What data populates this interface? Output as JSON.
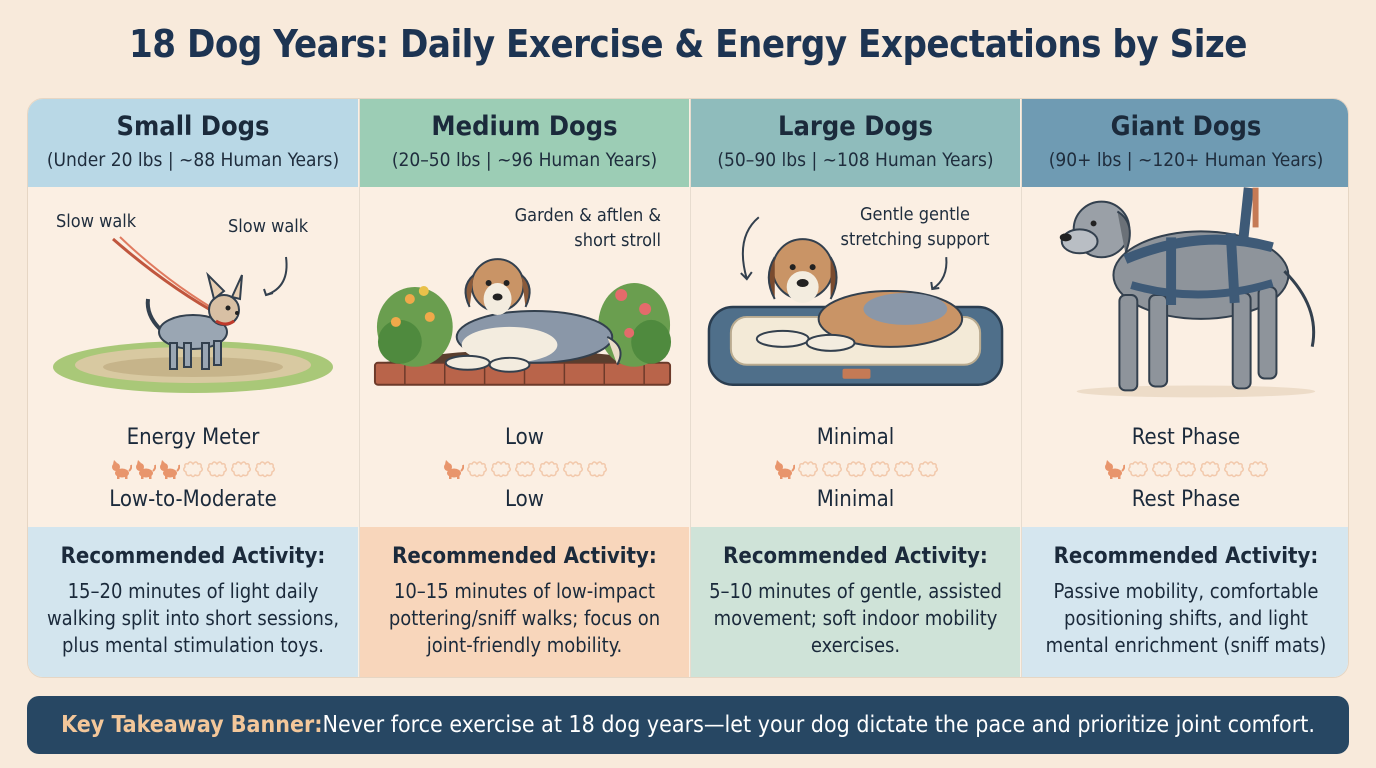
{
  "title": "18 Dog Years: Daily Exercise & Energy Expectations by Size",
  "columns": [
    {
      "name": "Small Dogs",
      "subtitle": "(Under 20 lbs | ~88 Human Years)",
      "notes": [
        "Slow walk",
        "Slow walk"
      ],
      "meter_top": "Energy Meter",
      "meter_bottom": "Low-to-Moderate",
      "energy_level": 3,
      "energy_max": 7,
      "rec_title": "Recommended Activity:",
      "rec_text": "15–20 minutes of light daily walking split into short sessions, plus mental stimulation toys.",
      "header_color": "#b9d8e6",
      "rec_color": "#d3e5ee"
    },
    {
      "name": "Medium Dogs",
      "subtitle": "(20–50 lbs | ~96 Human Years)",
      "notes": [
        "Garden & aftlen & short stroll"
      ],
      "meter_top": "Low",
      "meter_bottom": "Low",
      "energy_level": 1,
      "energy_max": 7,
      "rec_title": "Recommended Activity:",
      "rec_text": "10–15 minutes of low-impact pottering/sniff walks; focus on joint-friendly mobility.",
      "header_color": "#9ccdb5",
      "rec_color": "#f8d6bb"
    },
    {
      "name": "Large Dogs",
      "subtitle": "(50–90 lbs | ~108 Human Years)",
      "notes": [
        "Gentle gentle stretching support"
      ],
      "meter_top": "Minimal",
      "meter_bottom": "Minimal",
      "energy_level": 1,
      "energy_max": 7,
      "rec_title": "Recommended Activity:",
      "rec_text": "5–10 minutes of gentle, assisted movement; soft indoor mobility exercises.",
      "header_color": "#8fbcbc",
      "rec_color": "#cfe3d8"
    },
    {
      "name": "Giant Dogs",
      "subtitle": "(90+ lbs | ~120+ Human Years)",
      "notes": [],
      "meter_top": "Rest Phase",
      "meter_bottom": "Rest Phase",
      "energy_level": 1,
      "energy_max": 7,
      "rec_title": "Recommended Activity:",
      "rec_text": "Passive mobility, comfortable positioning shifts, and light mental enrichment (sniff mats)",
      "header_color": "#6f9bb3",
      "rec_color": "#d5e6ef"
    }
  ],
  "banner": {
    "label": "Key Takeaway Banner:",
    "message": "Never force exercise at 18 dog years—let your dog dictate the pace and prioritize joint comfort."
  },
  "icons": {
    "filled": "dog-icon",
    "empty": "paw-outline-icon",
    "filled_color": "#e8956c",
    "empty_color": "#f2c9ac"
  }
}
